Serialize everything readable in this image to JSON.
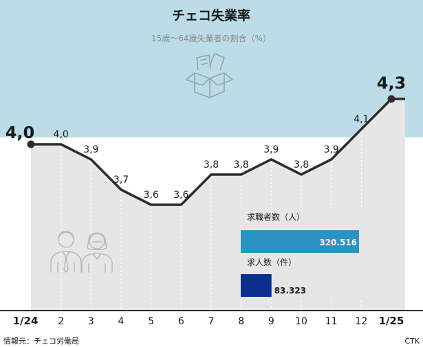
{
  "title": "チェコ失業率",
  "subtitle": "15歳〜64歳失業者の割合（%）",
  "source": "情報元：チェコ労働局",
  "credit": "ČTK",
  "colors": {
    "sky": "#bcdde8",
    "area": "#e6e6e6",
    "line": "#2b2b2b",
    "job_seekers_bar": "#2a93c3",
    "vacancies_bar": "#0b2f8f"
  },
  "icons": [
    "box-icon",
    "people-icon"
  ],
  "chart_data": {
    "type": "line",
    "categories": [
      "1/24",
      "2",
      "3",
      "4",
      "5",
      "6",
      "7",
      "8",
      "9",
      "10",
      "11",
      "12",
      "1/25"
    ],
    "values": [
      4.0,
      4.0,
      3.9,
      3.7,
      3.6,
      3.6,
      3.8,
      3.8,
      3.9,
      3.8,
      3.9,
      4.1,
      4.3
    ],
    "value_labels": [
      "4,0",
      "4,0",
      "3,9",
      "3,7",
      "3,6",
      "3,6",
      "3,8",
      "3,8",
      "3,9",
      "3,8",
      "3,9",
      "4,1",
      "4,3"
    ],
    "highlight_points": [
      0,
      12
    ],
    "grid": "vertical-dotted"
  },
  "panel": {
    "job_seekers_label": "求職者数（人）",
    "job_seekers_value": 320516,
    "job_seekers_text": "320.516",
    "vacancies_label": "求人数（件）",
    "vacancies_value": 83323,
    "vacancies_text": "83.323"
  }
}
